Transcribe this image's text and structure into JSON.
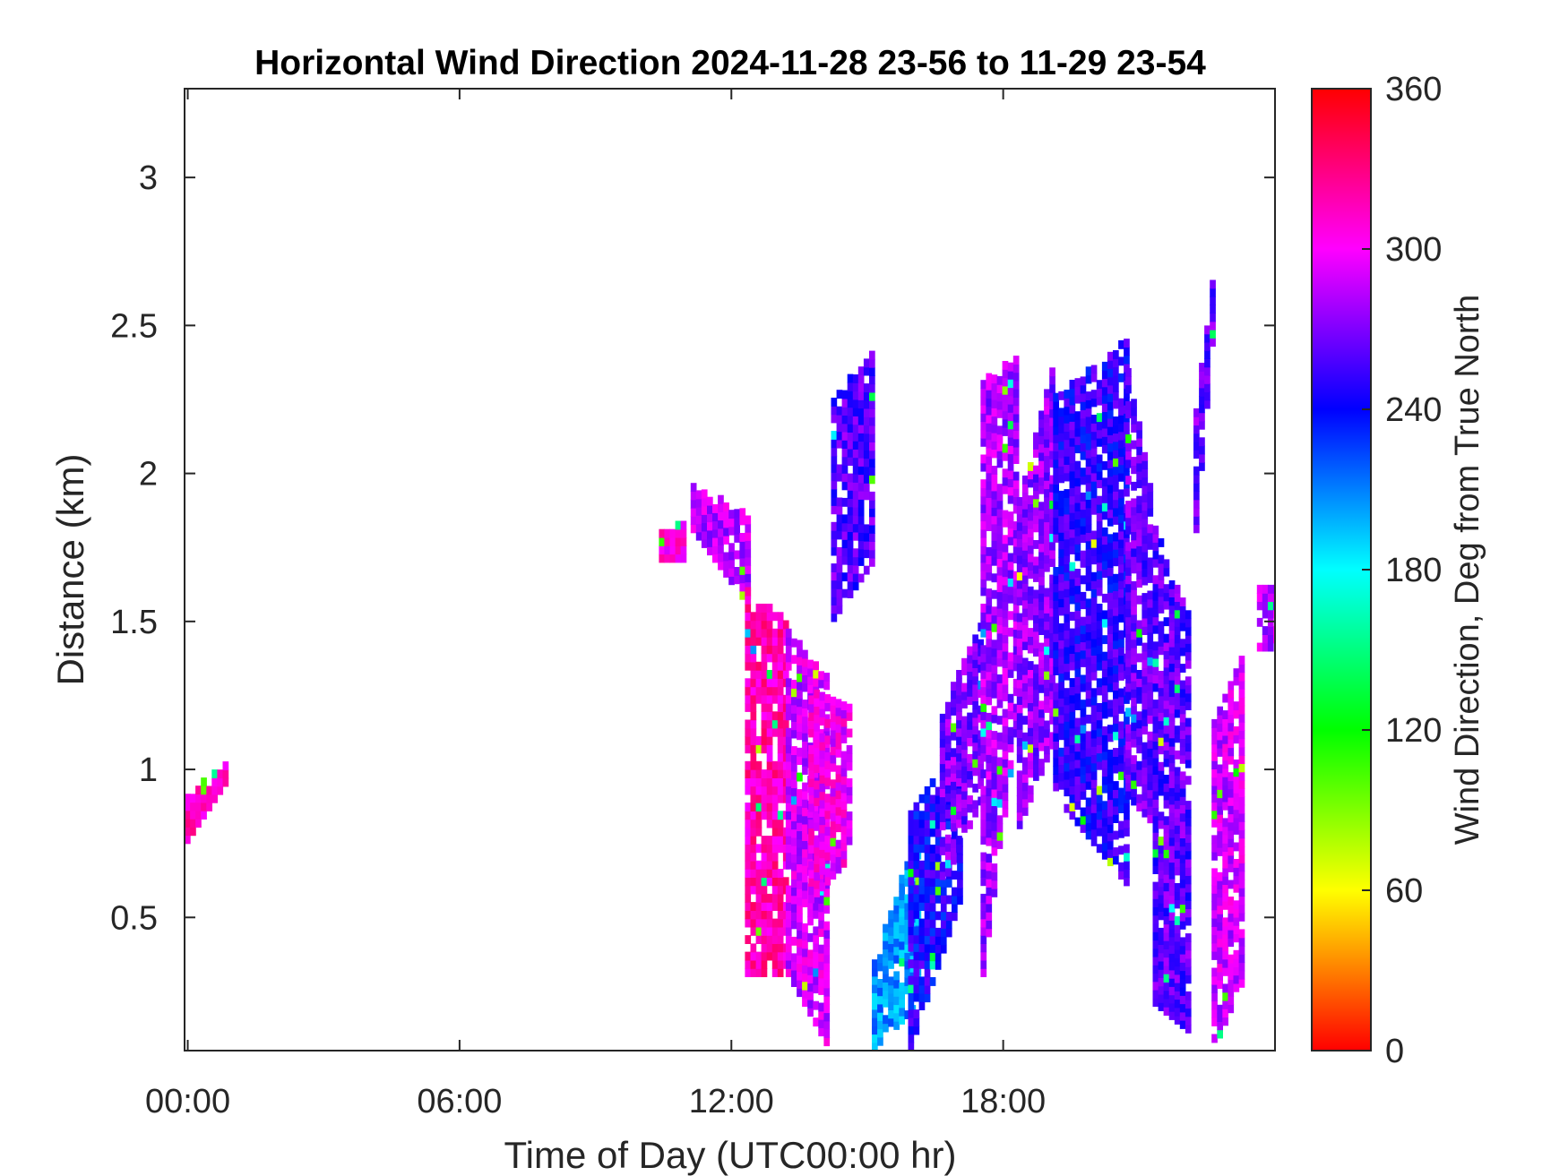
{
  "chart_data": {
    "type": "heatmap",
    "title": "Horizontal Wind Direction 2024-11-28 23-56 to 11-29 23-54",
    "xlabel": "Time of Day (UTC00:00 hr)",
    "ylabel": "Distance (km)",
    "colorbar_label": "Wind Direction, Deg from True North",
    "x_unit": "hours",
    "xlim": [
      -0.07,
      24.0
    ],
    "ylim": [
      0.05,
      3.3
    ],
    "x_ticks": [
      {
        "value": 0,
        "label": "00:00"
      },
      {
        "value": 6,
        "label": "06:00"
      },
      {
        "value": 12,
        "label": "12:00"
      },
      {
        "value": 18,
        "label": "18:00"
      }
    ],
    "y_ticks": [
      {
        "value": 0.5,
        "label": "0.5"
      },
      {
        "value": 1,
        "label": "1"
      },
      {
        "value": 1.5,
        "label": "1.5"
      },
      {
        "value": 2,
        "label": "2"
      },
      {
        "value": 2.5,
        "label": "2.5"
      },
      {
        "value": 3,
        "label": "3"
      }
    ],
    "colorbar": {
      "range": [
        0,
        360
      ],
      "ticks": [
        {
          "value": 0,
          "label": "0"
        },
        {
          "value": 60,
          "label": "60"
        },
        {
          "value": 120,
          "label": "120"
        },
        {
          "value": 180,
          "label": "180"
        },
        {
          "value": 240,
          "label": "240"
        },
        {
          "value": 300,
          "label": "300"
        },
        {
          "value": 360,
          "label": "360"
        }
      ],
      "colormap": "hsv"
    },
    "regions": [
      {
        "x": [
          -0.07,
          0.8
        ],
        "bottom_start": 0.75,
        "bottom_end": 0.95,
        "top_start": 0.9,
        "top_end": 1.02,
        "dir": 315
      },
      {
        "x": [
          10.4,
          10.9
        ],
        "bottom_start": 1.7,
        "bottom_end": 1.7,
        "top_start": 1.8,
        "top_end": 1.82,
        "dir": 310
      },
      {
        "x": [
          11.1,
          12.3
        ],
        "bottom_start": 1.8,
        "bottom_end": 1.55,
        "top_start": 1.95,
        "top_end": 1.85,
        "dir": 285
      },
      {
        "x": [
          12.3,
          13.2
        ],
        "bottom_start": 0.3,
        "bottom_end": 0.3,
        "top_start": 1.6,
        "top_end": 1.5,
        "dir": 318
      },
      {
        "x": [
          13.2,
          14.1
        ],
        "bottom_start": 0.3,
        "bottom_end": 0.05,
        "top_start": 1.45,
        "top_end": 1.3,
        "dir": 290
      },
      {
        "x": [
          13.7,
          14.6
        ],
        "bottom_start": 0.55,
        "bottom_end": 0.7,
        "top_start": 1.25,
        "top_end": 1.2,
        "dir": 300
      },
      {
        "x": [
          14.2,
          15.1
        ],
        "bottom_start": 1.5,
        "bottom_end": 1.7,
        "top_start": 2.25,
        "top_end": 2.4,
        "dir": 260
      },
      {
        "x": [
          15.1,
          16.1
        ],
        "bottom_start": 0.05,
        "bottom_end": 0.2,
        "top_start": 0.35,
        "top_end": 0.8,
        "dir": 205
      },
      {
        "x": [
          15.9,
          17.1
        ],
        "bottom_start": 0.05,
        "bottom_end": 0.6,
        "top_start": 0.85,
        "top_end": 1.1,
        "dir": 245
      },
      {
        "x": [
          16.6,
          17.5
        ],
        "bottom_start": 0.6,
        "bottom_end": 0.9,
        "top_start": 1.2,
        "top_end": 1.5,
        "dir": 270
      },
      {
        "x": [
          17.5,
          18.3
        ],
        "bottom_start": 0.3,
        "bottom_end": 1.2,
        "top_start": 2.3,
        "top_end": 2.4,
        "dir": 280
      },
      {
        "x": [
          18.3,
          19.1
        ],
        "bottom_start": 0.8,
        "bottom_end": 1.1,
        "top_start": 1.9,
        "top_end": 2.4,
        "dir": 275
      },
      {
        "x": [
          19.1,
          20.7
        ],
        "bottom_start": 0.9,
        "bottom_end": 0.6,
        "top_start": 2.25,
        "top_end": 2.45,
        "dir": 250
      },
      {
        "x": [
          20.7,
          21.3
        ],
        "bottom_start": 0.9,
        "bottom_end": 0.8,
        "top_start": 2.35,
        "top_end": 1.85,
        "dir": 265
      },
      {
        "x": [
          21.3,
          22.1
        ],
        "bottom_start": 0.2,
        "bottom_end": 0.1,
        "top_start": 1.8,
        "top_end": 1.5,
        "dir": 262
      },
      {
        "x": [
          22.2,
          22.6
        ],
        "bottom_start": 1.8,
        "bottom_end": 2.5,
        "top_start": 2.2,
        "top_end": 2.7,
        "dir": 265
      },
      {
        "x": [
          22.6,
          23.3
        ],
        "bottom_start": 0.05,
        "bottom_end": 0.3,
        "top_start": 1.15,
        "top_end": 1.4,
        "dir": 290
      },
      {
        "x": [
          23.6,
          24.0
        ],
        "bottom_start": 1.4,
        "bottom_end": 1.4,
        "top_start": 1.6,
        "top_end": 1.6,
        "dir": 285
      }
    ]
  }
}
